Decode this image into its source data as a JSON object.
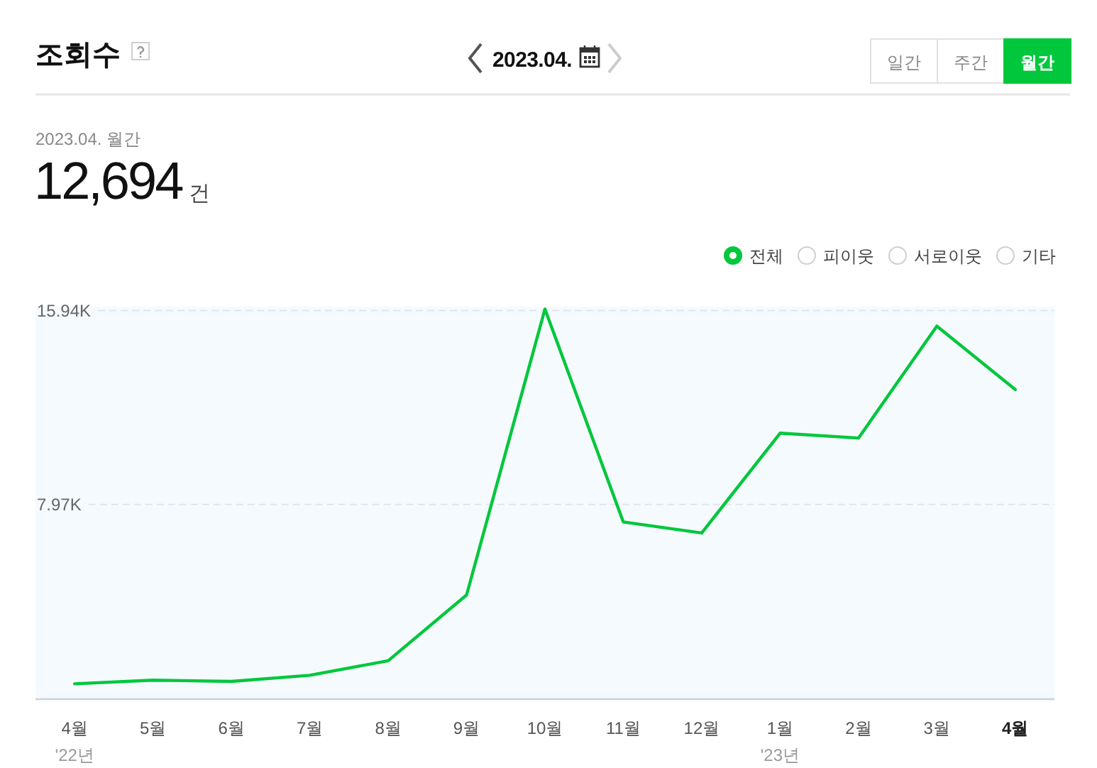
{
  "chart_data": {
    "type": "line",
    "title": "조회수",
    "subtitle": "2023.04. 월간",
    "categories": [
      "4월\n'22년",
      "5월",
      "6월",
      "7월",
      "8월",
      "9월",
      "10월",
      "11월",
      "12월",
      "1월\n'23년",
      "2월",
      "3월",
      "4월"
    ],
    "series": [
      {
        "name": "전체",
        "color": "#00c73c",
        "values": [
          600,
          750,
          700,
          950,
          1550,
          4250,
          16000,
          7250,
          6800,
          10900,
          10700,
          15300,
          12694
        ]
      }
    ],
    "ylim": [
      0,
      16100
    ],
    "yticks": [
      {
        "value": 7970,
        "label": "7.97K"
      },
      {
        "value": 15940,
        "label": "15.94K"
      }
    ],
    "grid": "y",
    "legend": "top right",
    "annotations": [
      "2023.04.",
      "일간",
      "주간",
      "월간",
      "12,694",
      "건",
      "피이웃",
      "서로이웃",
      "기타"
    ]
  }
}
